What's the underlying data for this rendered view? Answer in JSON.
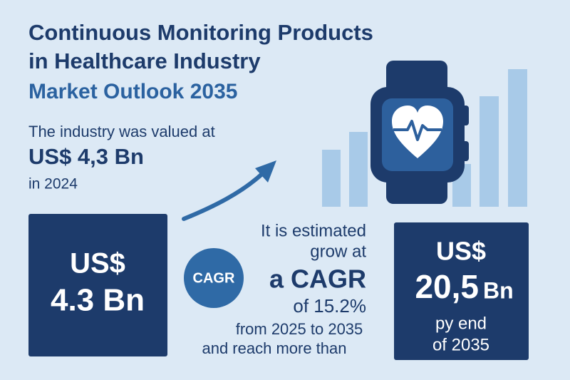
{
  "header": {
    "title_lines": [
      "Continuous Monitoring Products",
      "in Healthcare Industry"
    ],
    "subtitle": "Market Outlook 2035"
  },
  "valuation": {
    "intro": "The industry was valued at",
    "amount": "US$ 4,3 Bn",
    "year": "in 2024"
  },
  "left_box": {
    "currency": "US$",
    "amount": "4.3 Bn"
  },
  "badge": "CAGR",
  "growth": {
    "lines": [
      "It is estimated",
      "grow at"
    ],
    "cagr": "a CAGR",
    "rate": "of 15.2%",
    "period": "from 2025 to 2035",
    "reach": "and reach more than"
  },
  "right_box": {
    "currency": "US$",
    "amount": "20,5",
    "unit": "Bn",
    "lines": [
      "py end",
      "of 2035"
    ]
  }
}
